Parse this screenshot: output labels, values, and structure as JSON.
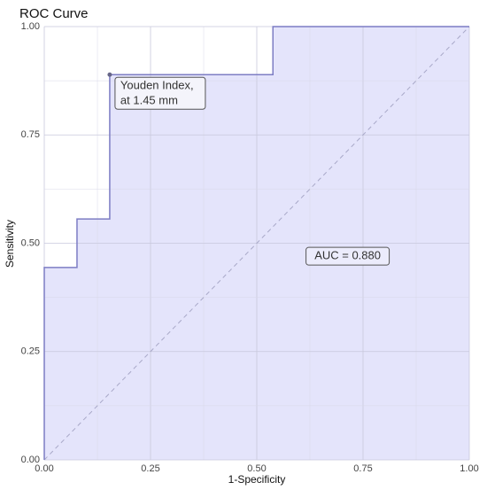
{
  "chart_data": {
    "type": "line",
    "title": "ROC Curve",
    "x_label": "1-Specificity",
    "y_label": "Sensitivity",
    "series": [
      {
        "name": "ROC",
        "color": "#7d7dc4",
        "fill": "#e4e4fb",
        "x": [
          0,
          0,
          0.077,
          0.077,
          0.154,
          0.154,
          0.538,
          0.538,
          1
        ],
        "values": [
          0,
          0.444,
          0.444,
          0.556,
          0.556,
          0.889,
          0.889,
          1,
          1
        ]
      }
    ],
    "xlim": [
      0,
      1
    ],
    "ylim": [
      0,
      1
    ],
    "xticks": [
      {
        "value": 0,
        "label": "0.00"
      },
      {
        "value": 0.25,
        "label": "0.25"
      },
      {
        "value": 0.5,
        "label": "0.50"
      },
      {
        "value": 0.75,
        "label": "0.75"
      },
      {
        "value": 1,
        "label": "1.00"
      }
    ],
    "yticks": [
      {
        "value": 0,
        "label": "0.00"
      },
      {
        "value": 0.25,
        "label": "0.25"
      },
      {
        "value": 0.5,
        "label": "0.50"
      },
      {
        "value": 0.75,
        "label": "0.75"
      },
      {
        "value": 1,
        "label": "1.00"
      }
    ],
    "grid": true,
    "reference_line": true,
    "points": [
      {
        "x": 0.154,
        "y": 0.889,
        "label_lines": [
          "Youden Index,",
          "at 1.45 mm"
        ]
      }
    ],
    "annotations": [
      {
        "text": "AUC = 0.880",
        "x": 0.62,
        "y": 0.47
      }
    ]
  }
}
